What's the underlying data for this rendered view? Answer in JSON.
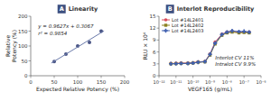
{
  "chart_data": [
    {
      "type": "scatter",
      "panel_label": "A",
      "title": "Linearity",
      "xlabel": "Expected Relative Potency (%)",
      "ylabel": "Relative\nPotency (%)",
      "xlim": [
        0,
        200
      ],
      "ylim": [
        0,
        200
      ],
      "xticks": [
        0,
        50,
        100,
        150,
        200
      ],
      "yticks": [
        0,
        50,
        100,
        150,
        200
      ],
      "series": [
        {
          "type": "scatter",
          "color": "#4a5585",
          "x": [
            50,
            75,
            100,
            125,
            150
          ],
          "values": [
            48,
            73,
            100,
            112,
            150
          ]
        },
        {
          "type": "line",
          "color": "#6a7aaa",
          "x": [
            44,
            156
          ],
          "values": [
            42.7,
            150.6
          ]
        }
      ],
      "annotations": [
        "y = 0.9627x + 0.3067",
        "r² = 0.9854"
      ],
      "color": "#3d5080"
    },
    {
      "type": "line",
      "panel_label": "B",
      "title": "Interlot Reproducibility",
      "xlabel": "VEGF165 (g/mL)",
      "ylabel": "RLU × 10⁴",
      "log": "x",
      "xlim": [
        1e-12,
        1e-06
      ],
      "ylim": [
        0,
        15
      ],
      "xticks": [
        {
          "value": 1e-12,
          "label": "10⁻¹²"
        },
        {
          "value": 1e-11,
          "label": "10⁻¹¹"
        },
        {
          "value": 1e-10,
          "label": "10⁻¹⁰"
        },
        {
          "value": 1e-09,
          "label": "10⁻⁹"
        },
        {
          "value": 1e-08,
          "label": "10⁻⁸"
        },
        {
          "value": 1e-07,
          "label": "10⁻⁷"
        },
        {
          "value": 1e-06,
          "label": "10⁻⁶"
        }
      ],
      "yticks": [
        0,
        3,
        6,
        9,
        12,
        15
      ],
      "x": [
        5.01187233627e-12,
        1e-11,
        1.99526231497e-11,
        5.01187233627e-11,
        1e-10,
        1.99526231497e-10,
        5.01187233627e-10,
        1e-09,
        1.99526231497e-09,
        5.01187233627e-09,
        1e-08,
        1.99526231497e-08,
        5.01187233627e-08,
        1e-07,
        1.99526231497e-07
      ],
      "series": [
        {
          "name": "Lot #14L2401",
          "color": "#d94f5c",
          "marker": "circle",
          "values": [
            3.1,
            3.15,
            3.2,
            3.2,
            3.3,
            3.5,
            3.6,
            5.5,
            8.5,
            10.5,
            11.0,
            11.2,
            11.0,
            11.0,
            11.0
          ]
        },
        {
          "name": "Lot #14L2402",
          "color": "#8a8020",
          "marker": "square",
          "values": [
            3.0,
            3.05,
            3.1,
            3.1,
            3.2,
            3.4,
            3.5,
            5.2,
            8.0,
            10.2,
            10.8,
            11.0,
            10.8,
            10.9,
            10.8
          ]
        },
        {
          "name": "Lot #14L2403",
          "color": "#4060b0",
          "marker": "plus",
          "values": [
            3.0,
            3.05,
            3.1,
            3.1,
            3.2,
            3.4,
            3.55,
            5.4,
            8.2,
            10.4,
            11.0,
            11.3,
            11.1,
            11.2,
            11.0
          ]
        }
      ],
      "legend": "upper left",
      "annotations": [
        "Interlot CV 11%",
        "Intralot CV 9.9%"
      ],
      "color": "#3d5080"
    }
  ]
}
